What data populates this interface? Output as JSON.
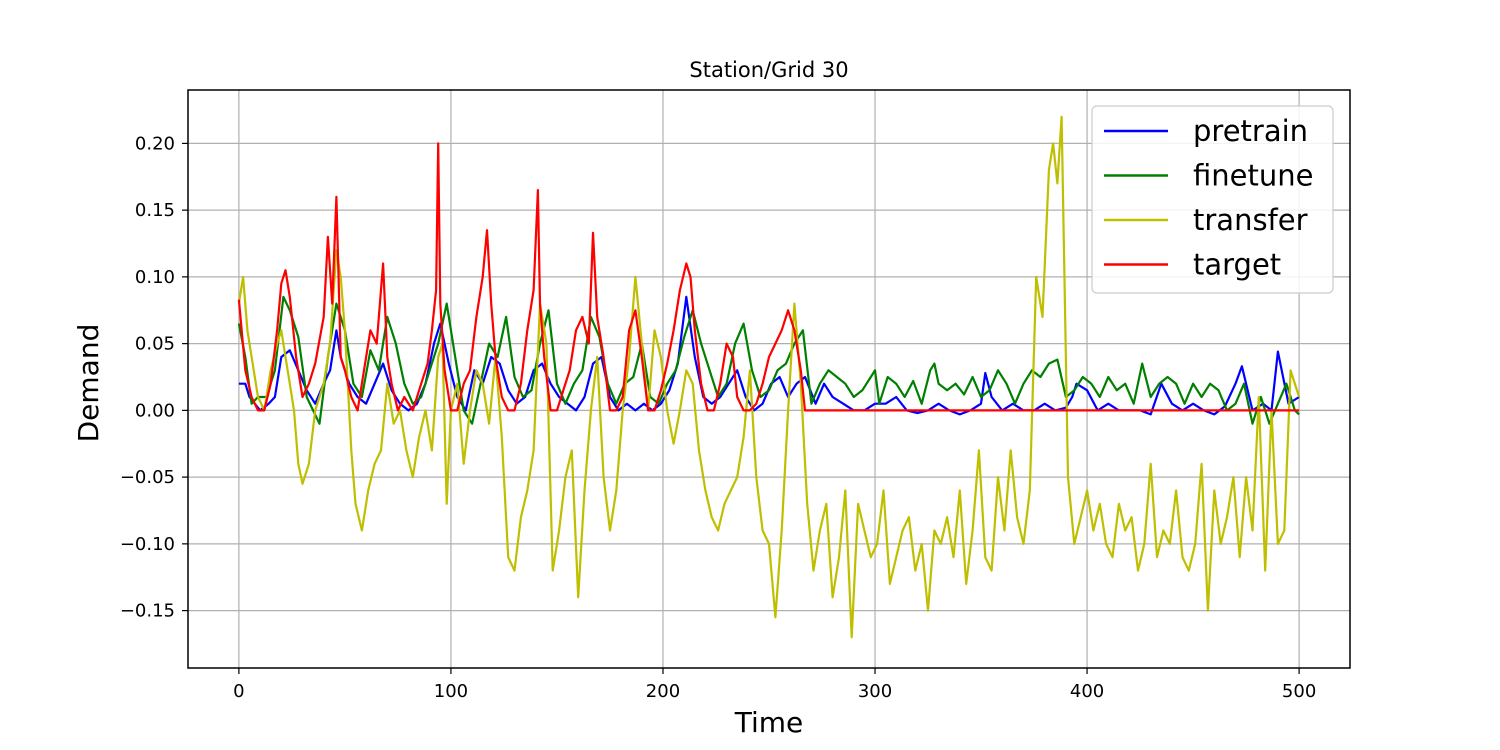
{
  "chart_data": {
    "type": "line",
    "title": "Station/Grid 30",
    "xlabel": "Time",
    "ylabel": "Demand",
    "xlim": [
      -24,
      524
    ],
    "ylim": [
      -0.193,
      0.24
    ],
    "xticks": [
      0,
      100,
      200,
      300,
      400,
      500
    ],
    "yticks": [
      -0.15,
      -0.1,
      -0.05,
      0.0,
      0.05,
      0.1,
      0.15,
      0.2
    ],
    "xtick_labels": [
      "0",
      "100",
      "200",
      "300",
      "400",
      "500"
    ],
    "ytick_labels": [
      "−0.15",
      "−0.10",
      "−0.05",
      "0.00",
      "0.05",
      "0.10",
      "0.15",
      "0.20"
    ],
    "grid": true,
    "legend_position": "top-right",
    "series": [
      {
        "name": "pretrain",
        "color": "#0000ff",
        "x": [
          0,
          3,
          5,
          10,
          14,
          17,
          20,
          24,
          28,
          32,
          36,
          40,
          43,
          46,
          48,
          52,
          56,
          60,
          64,
          68,
          72,
          76,
          80,
          84,
          88,
          92,
          95,
          99,
          103,
          107,
          111,
          115,
          119,
          123,
          127,
          131,
          135,
          139,
          143,
          147,
          151,
          155,
          159,
          163,
          167,
          171,
          175,
          179,
          183,
          187,
          191,
          195,
          199,
          203,
          207,
          211,
          215,
          219,
          223,
          227,
          231,
          235,
          239,
          243,
          247,
          251,
          255,
          259,
          263,
          267,
          272,
          276,
          280,
          285,
          290,
          295,
          300,
          305,
          310,
          315,
          320,
          325,
          330,
          335,
          340,
          345,
          350,
          352,
          355,
          360,
          365,
          370,
          375,
          380,
          385,
          390,
          393,
          395,
          400,
          405,
          410,
          415,
          420,
          425,
          430,
          435,
          440,
          445,
          450,
          455,
          460,
          465,
          470,
          473,
          478,
          483,
          487,
          490,
          495,
          500
        ],
        "y": [
          0.02,
          0.02,
          0.01,
          0.0,
          0.005,
          0.01,
          0.04,
          0.045,
          0.03,
          0.015,
          0.005,
          0.02,
          0.03,
          0.06,
          0.04,
          0.02,
          0.01,
          0.005,
          0.02,
          0.035,
          0.015,
          0.005,
          0.0,
          0.005,
          0.02,
          0.05,
          0.065,
          0.035,
          0.01,
          0.0,
          0.03,
          0.02,
          0.04,
          0.035,
          0.015,
          0.005,
          0.01,
          0.03,
          0.035,
          0.02,
          0.01,
          0.005,
          0.0,
          0.01,
          0.035,
          0.04,
          0.01,
          0.0,
          0.005,
          0.0,
          0.005,
          0.0,
          0.005,
          0.015,
          0.035,
          0.085,
          0.04,
          0.01,
          0.005,
          0.01,
          0.02,
          0.03,
          0.01,
          0.0,
          0.005,
          0.02,
          0.025,
          0.01,
          0.02,
          0.025,
          0.005,
          0.02,
          0.01,
          0.005,
          0.0,
          0.0,
          0.005,
          0.005,
          0.01,
          0.0,
          -0.002,
          0.0,
          0.005,
          0.0,
          -0.003,
          0.0,
          0.005,
          0.028,
          0.01,
          0.0,
          0.005,
          0.0,
          0.0,
          0.005,
          0.0,
          0.002,
          0.01,
          0.02,
          0.015,
          0.0,
          0.005,
          0.0,
          0.0,
          0.0,
          -0.003,
          0.02,
          0.005,
          0.0,
          0.005,
          0.0,
          -0.003,
          0.003,
          0.02,
          0.033,
          0.0,
          0.005,
          0.0,
          0.044,
          0.005,
          0.01
        ]
      },
      {
        "name": "finetune",
        "color": "#008000",
        "x": [
          0,
          3,
          6,
          9,
          13,
          17,
          21,
          24,
          28,
          32,
          35,
          38,
          42,
          46,
          50,
          54,
          58,
          62,
          66,
          70,
          74,
          78,
          82,
          86,
          90,
          94,
          98,
          102,
          106,
          110,
          114,
          118,
          122,
          126,
          130,
          134,
          138,
          142,
          146,
          150,
          154,
          158,
          162,
          166,
          170,
          174,
          178,
          182,
          186,
          190,
          194,
          198,
          202,
          206,
          210,
          214,
          218,
          222,
          226,
          230,
          234,
          238,
          242,
          246,
          250,
          254,
          258,
          262,
          266,
          270,
          274,
          278,
          282,
          286,
          290,
          294,
          298,
          300,
          302,
          306,
          310,
          314,
          318,
          322,
          326,
          328,
          330,
          334,
          338,
          342,
          346,
          350,
          354,
          358,
          362,
          366,
          370,
          374,
          378,
          382,
          386,
          390,
          394,
          398,
          402,
          406,
          410,
          414,
          418,
          422,
          426,
          430,
          434,
          438,
          442,
          446,
          450,
          454,
          458,
          462,
          466,
          470,
          474,
          478,
          482,
          486,
          490,
          494,
          498,
          500
        ],
        "y": [
          0.065,
          0.04,
          0.005,
          0.01,
          0.01,
          0.03,
          0.085,
          0.075,
          0.055,
          0.01,
          0.0,
          -0.01,
          0.04,
          0.08,
          0.06,
          0.02,
          0.01,
          0.045,
          0.03,
          0.07,
          0.05,
          0.02,
          0.005,
          0.01,
          0.03,
          0.05,
          0.08,
          0.04,
          0.0,
          -0.01,
          0.02,
          0.05,
          0.04,
          0.07,
          0.025,
          0.01,
          0.015,
          0.05,
          0.075,
          0.02,
          0.005,
          0.02,
          0.03,
          0.07,
          0.055,
          0.02,
          0.005,
          0.02,
          0.025,
          0.05,
          0.01,
          0.005,
          0.02,
          0.03,
          0.055,
          0.075,
          0.05,
          0.03,
          0.01,
          0.02,
          0.05,
          0.065,
          0.03,
          0.01,
          0.015,
          0.03,
          0.035,
          0.05,
          0.06,
          0.005,
          0.02,
          0.03,
          0.025,
          0.02,
          0.01,
          0.015,
          0.025,
          0.03,
          0.005,
          0.025,
          0.02,
          0.01,
          0.022,
          0.005,
          0.03,
          0.035,
          0.02,
          0.015,
          0.02,
          0.012,
          0.025,
          0.01,
          0.015,
          0.03,
          0.02,
          0.005,
          0.02,
          0.03,
          0.025,
          0.035,
          0.038,
          0.01,
          0.015,
          0.025,
          0.02,
          0.01,
          0.025,
          0.015,
          0.02,
          0.005,
          0.035,
          0.01,
          0.02,
          0.025,
          0.02,
          0.005,
          0.02,
          0.01,
          0.02,
          0.015,
          0.0,
          0.005,
          0.02,
          -0.01,
          0.01,
          -0.01,
          0.005,
          0.02,
          0.0,
          -0.003
        ]
      },
      {
        "name": "transfer",
        "color": "#bfbf00",
        "x": [
          0,
          2,
          4,
          6,
          9,
          12,
          15,
          18,
          20,
          22,
          24,
          26,
          28,
          30,
          33,
          36,
          40,
          43,
          46,
          48,
          50,
          53,
          55,
          58,
          61,
          64,
          67,
          70,
          73,
          76,
          79,
          82,
          85,
          88,
          91,
          94,
          96,
          98,
          100,
          103,
          106,
          109,
          112,
          115,
          118,
          121,
          124,
          127,
          130,
          133,
          136,
          139,
          142,
          145,
          148,
          151,
          154,
          157,
          160,
          163,
          166,
          169,
          172,
          175,
          178,
          181,
          184,
          187,
          190,
          193,
          196,
          199,
          202,
          205,
          208,
          211,
          214,
          217,
          220,
          223,
          226,
          229,
          232,
          235,
          238,
          241,
          244,
          247,
          250,
          253,
          256,
          259,
          262,
          265,
          268,
          271,
          274,
          277,
          280,
          283,
          286,
          289,
          292,
          295,
          298,
          301,
          304,
          307,
          310,
          313,
          316,
          319,
          322,
          325,
          328,
          331,
          334,
          337,
          340,
          343,
          346,
          349,
          352,
          355,
          358,
          361,
          364,
          367,
          370,
          373,
          376,
          379,
          382,
          384,
          386,
          388,
          391,
          394,
          397,
          400,
          403,
          406,
          409,
          412,
          415,
          418,
          421,
          424,
          427,
          430,
          433,
          436,
          439,
          442,
          445,
          448,
          451,
          454,
          457,
          460,
          463,
          466,
          469,
          472,
          475,
          478,
          481,
          484,
          487,
          490,
          493,
          496,
          500
        ],
        "y": [
          0.08,
          0.1,
          0.06,
          0.04,
          0.01,
          0.0,
          0.03,
          0.05,
          0.06,
          0.04,
          0.02,
          0.0,
          -0.04,
          -0.055,
          -0.04,
          0.0,
          0.02,
          0.05,
          0.12,
          0.1,
          0.06,
          -0.03,
          -0.07,
          -0.09,
          -0.06,
          -0.04,
          -0.03,
          0.02,
          -0.01,
          0.0,
          -0.03,
          -0.05,
          -0.02,
          0.0,
          -0.03,
          0.04,
          0.05,
          -0.07,
          0.0,
          0.02,
          -0.04,
          0.0,
          0.03,
          0.02,
          -0.01,
          0.04,
          -0.02,
          -0.11,
          -0.12,
          -0.08,
          -0.06,
          -0.03,
          0.08,
          0.05,
          -0.12,
          -0.09,
          -0.05,
          -0.03,
          -0.14,
          -0.06,
          0.0,
          0.04,
          -0.05,
          -0.09,
          -0.06,
          0.0,
          0.04,
          0.1,
          0.05,
          0.0,
          0.06,
          0.04,
          0.0,
          -0.025,
          0.0,
          0.03,
          0.02,
          -0.03,
          -0.06,
          -0.08,
          -0.09,
          -0.07,
          -0.06,
          -0.05,
          -0.02,
          0.03,
          -0.05,
          -0.09,
          -0.1,
          -0.155,
          -0.09,
          0.0,
          0.08,
          0.02,
          -0.07,
          -0.12,
          -0.09,
          -0.07,
          -0.14,
          -0.11,
          -0.06,
          -0.17,
          -0.07,
          -0.09,
          -0.11,
          -0.1,
          -0.06,
          -0.13,
          -0.11,
          -0.09,
          -0.08,
          -0.12,
          -0.1,
          -0.15,
          -0.09,
          -0.1,
          -0.08,
          -0.11,
          -0.06,
          -0.13,
          -0.09,
          -0.03,
          -0.11,
          -0.12,
          -0.05,
          -0.09,
          -0.03,
          -0.08,
          -0.1,
          -0.06,
          0.1,
          0.07,
          0.18,
          0.2,
          0.17,
          0.22,
          -0.05,
          -0.1,
          -0.08,
          -0.06,
          -0.09,
          -0.07,
          -0.1,
          -0.11,
          -0.07,
          -0.09,
          -0.08,
          -0.12,
          -0.1,
          -0.04,
          -0.11,
          -0.09,
          -0.1,
          -0.06,
          -0.11,
          -0.12,
          -0.1,
          -0.04,
          -0.15,
          -0.06,
          -0.1,
          -0.08,
          -0.05,
          -0.11,
          -0.05,
          -0.09,
          0.01,
          -0.12,
          0.0,
          -0.1,
          -0.09,
          0.03,
          0.01
        ]
      },
      {
        "name": "target",
        "color": "#ff0000",
        "x": [
          0,
          3,
          6,
          9,
          12,
          15,
          18,
          20,
          22,
          24,
          27,
          30,
          33,
          36,
          40,
          42,
          44,
          46,
          48,
          50,
          53,
          56,
          59,
          62,
          65,
          68,
          70,
          72,
          75,
          78,
          82,
          86,
          89,
          91,
          93,
          94,
          95,
          97,
          100,
          103,
          106,
          109,
          112,
          115,
          117,
          119,
          121,
          124,
          127,
          130,
          133,
          136,
          139,
          141,
          142,
          144,
          147,
          150,
          153,
          156,
          159,
          162,
          165,
          167,
          169,
          172,
          175,
          178,
          181,
          184,
          187,
          190,
          193,
          196,
          199,
          202,
          205,
          208,
          211,
          213,
          215,
          218,
          221,
          224,
          227,
          230,
          233,
          235,
          238,
          241,
          244,
          247,
          250,
          253,
          256,
          259,
          262,
          265,
          267,
          270,
          273,
          276,
          280,
          290,
          300,
          320,
          340,
          360,
          380,
          400,
          420,
          440,
          460,
          480,
          500
        ],
        "y": [
          0.083,
          0.03,
          0.01,
          0.0,
          0.0,
          0.02,
          0.06,
          0.095,
          0.105,
          0.085,
          0.04,
          0.01,
          0.02,
          0.035,
          0.07,
          0.13,
          0.08,
          0.16,
          0.04,
          0.03,
          0.01,
          0.0,
          0.03,
          0.06,
          0.05,
          0.11,
          0.04,
          0.02,
          0.0,
          0.01,
          0.0,
          0.02,
          0.035,
          0.06,
          0.09,
          0.2,
          0.08,
          0.03,
          0.0,
          0.0,
          0.02,
          0.03,
          0.07,
          0.1,
          0.135,
          0.08,
          0.04,
          0.01,
          0.0,
          0.0,
          0.02,
          0.06,
          0.09,
          0.165,
          0.08,
          0.04,
          0.0,
          0.0,
          0.015,
          0.03,
          0.06,
          0.07,
          0.05,
          0.133,
          0.07,
          0.04,
          0.0,
          0.0,
          0.01,
          0.06,
          0.075,
          0.04,
          0.0,
          0.0,
          0.015,
          0.035,
          0.06,
          0.09,
          0.11,
          0.1,
          0.06,
          0.02,
          0.0,
          0.0,
          0.02,
          0.05,
          0.04,
          0.01,
          0.0,
          0.0,
          0.005,
          0.02,
          0.04,
          0.05,
          0.06,
          0.075,
          0.06,
          0.03,
          0.0,
          0.0,
          0.0,
          0.0,
          0.0,
          0.0,
          0.0,
          0.0,
          0.0,
          0.0,
          0.0,
          0.0,
          0.0,
          0.0,
          0.0,
          0.0,
          0.0
        ]
      }
    ]
  }
}
